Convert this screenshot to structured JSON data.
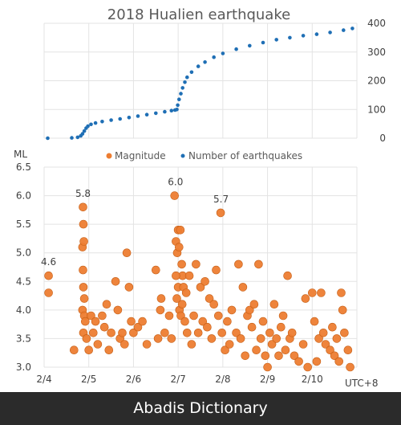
{
  "chart_data": {
    "title": "2018 Hualien earthquake",
    "x_axis": {
      "label": "UTC+8",
      "ticks": [
        "2/4",
        "2/5",
        "2/6",
        "2/7",
        "2/8",
        "2/9",
        "2/10"
      ],
      "range_days": [
        4,
        11
      ]
    },
    "legend": {
      "placement": "top-center",
      "entries": [
        {
          "name": "Magnitude",
          "color": "#ed7d31",
          "marker": "circle"
        },
        {
          "name": "Number of earthquakes",
          "color": "#1f6fb5",
          "marker": "dot"
        }
      ]
    },
    "panels": [
      {
        "type": "scatter",
        "series": "Number of earthquakes",
        "y_axis": {
          "side": "right",
          "ylim": [
            0,
            400
          ],
          "ticks": [
            "0",
            "100",
            "200",
            "300",
            "400"
          ]
        },
        "points": [
          [
            4.08,
            0
          ],
          [
            4.62,
            1
          ],
          [
            4.75,
            3
          ],
          [
            4.82,
            8
          ],
          [
            4.86,
            15
          ],
          [
            4.9,
            25
          ],
          [
            4.94,
            35
          ],
          [
            4.98,
            42
          ],
          [
            5.05,
            48
          ],
          [
            5.15,
            53
          ],
          [
            5.3,
            58
          ],
          [
            5.5,
            63
          ],
          [
            5.7,
            67
          ],
          [
            5.9,
            72
          ],
          [
            6.1,
            77
          ],
          [
            6.3,
            82
          ],
          [
            6.5,
            87
          ],
          [
            6.7,
            92
          ],
          [
            6.85,
            96
          ],
          [
            6.93,
            98
          ],
          [
            6.97,
            100
          ],
          [
            6.99,
            115
          ],
          [
            7.02,
            135
          ],
          [
            7.06,
            155
          ],
          [
            7.1,
            175
          ],
          [
            7.15,
            195
          ],
          [
            7.2,
            212
          ],
          [
            7.3,
            230
          ],
          [
            7.45,
            250
          ],
          [
            7.6,
            265
          ],
          [
            7.8,
            282
          ],
          [
            8.0,
            295
          ],
          [
            8.3,
            310
          ],
          [
            8.6,
            322
          ],
          [
            8.9,
            333
          ],
          [
            9.2,
            343
          ],
          [
            9.5,
            350
          ],
          [
            9.8,
            357
          ],
          [
            10.1,
            362
          ],
          [
            10.4,
            368
          ],
          [
            10.7,
            376
          ],
          [
            10.9,
            382
          ]
        ]
      },
      {
        "type": "scatter",
        "series": "Magnitude",
        "y_axis": {
          "side": "left",
          "label": "ML",
          "ylim": [
            3.0,
            6.5
          ],
          "ticks": [
            "3.0",
            "3.5",
            "4.0",
            "4.5",
            "5.0",
            "5.5",
            "6.0",
            "6.5"
          ]
        },
        "annotations": [
          {
            "text": "4.6",
            "x": 4.1,
            "y": 4.6
          },
          {
            "text": "5.8",
            "x": 4.87,
            "y": 5.8
          },
          {
            "text": "6.0",
            "x": 6.94,
            "y": 6.0
          },
          {
            "text": "5.7",
            "x": 7.96,
            "y": 5.7
          }
        ],
        "points": [
          [
            4.1,
            4.6
          ],
          [
            4.1,
            4.3
          ],
          [
            4.67,
            3.3
          ],
          [
            4.87,
            5.8
          ],
          [
            4.88,
            5.5
          ],
          [
            4.86,
            5.1
          ],
          [
            4.89,
            5.2
          ],
          [
            4.87,
            4.7
          ],
          [
            4.88,
            4.4
          ],
          [
            4.9,
            4.2
          ],
          [
            4.86,
            4.0
          ],
          [
            4.9,
            3.9
          ],
          [
            4.92,
            3.8
          ],
          [
            4.88,
            3.6
          ],
          [
            4.95,
            3.5
          ],
          [
            5.0,
            3.3
          ],
          [
            5.05,
            3.9
          ],
          [
            5.1,
            3.6
          ],
          [
            5.15,
            3.8
          ],
          [
            5.2,
            3.4
          ],
          [
            5.3,
            3.9
          ],
          [
            5.35,
            3.7
          ],
          [
            5.4,
            4.1
          ],
          [
            5.45,
            3.3
          ],
          [
            5.5,
            3.6
          ],
          [
            5.6,
            4.5
          ],
          [
            5.65,
            4.0
          ],
          [
            5.7,
            3.5
          ],
          [
            5.75,
            3.6
          ],
          [
            5.8,
            3.4
          ],
          [
            5.85,
            5.0
          ],
          [
            5.9,
            4.4
          ],
          [
            5.95,
            3.8
          ],
          [
            6.0,
            3.6
          ],
          [
            6.1,
            3.7
          ],
          [
            6.2,
            3.8
          ],
          [
            6.3,
            3.4
          ],
          [
            6.5,
            4.7
          ],
          [
            6.55,
            3.5
          ],
          [
            6.6,
            4.0
          ],
          [
            6.62,
            4.2
          ],
          [
            6.7,
            3.6
          ],
          [
            6.8,
            3.9
          ],
          [
            6.85,
            3.5
          ],
          [
            6.92,
            6.0
          ],
          [
            6.95,
            5.2
          ],
          [
            6.98,
            5.0
          ],
          [
            7.0,
            5.4
          ],
          [
            7.02,
            5.1
          ],
          [
            7.05,
            5.4
          ],
          [
            7.08,
            4.8
          ],
          [
            7.1,
            4.6
          ],
          [
            6.95,
            4.6
          ],
          [
            6.97,
            4.2
          ],
          [
            7.0,
            4.4
          ],
          [
            7.03,
            4.0
          ],
          [
            7.06,
            3.9
          ],
          [
            7.09,
            4.1
          ],
          [
            7.12,
            4.4
          ],
          [
            7.15,
            3.8
          ],
          [
            7.18,
            4.3
          ],
          [
            7.2,
            3.6
          ],
          [
            7.25,
            4.6
          ],
          [
            7.3,
            3.4
          ],
          [
            7.35,
            3.9
          ],
          [
            7.4,
            4.8
          ],
          [
            7.45,
            3.6
          ],
          [
            7.5,
            4.4
          ],
          [
            7.55,
            3.8
          ],
          [
            7.6,
            4.5
          ],
          [
            7.65,
            3.7
          ],
          [
            7.7,
            4.2
          ],
          [
            7.75,
            3.5
          ],
          [
            7.8,
            4.1
          ],
          [
            7.85,
            4.7
          ],
          [
            7.9,
            3.9
          ],
          [
            7.95,
            5.7
          ],
          [
            7.98,
            3.6
          ],
          [
            8.05,
            3.3
          ],
          [
            8.1,
            3.8
          ],
          [
            8.15,
            3.4
          ],
          [
            8.2,
            4.0
          ],
          [
            8.3,
            3.6
          ],
          [
            8.35,
            4.8
          ],
          [
            8.4,
            3.5
          ],
          [
            8.45,
            4.4
          ],
          [
            8.5,
            3.2
          ],
          [
            8.55,
            3.9
          ],
          [
            8.6,
            4.0
          ],
          [
            8.65,
            3.7
          ],
          [
            8.7,
            4.1
          ],
          [
            8.75,
            3.3
          ],
          [
            8.8,
            4.8
          ],
          [
            8.85,
            3.5
          ],
          [
            8.9,
            3.8
          ],
          [
            8.95,
            3.2
          ],
          [
            9.0,
            3.0
          ],
          [
            9.05,
            3.6
          ],
          [
            9.1,
            3.4
          ],
          [
            9.15,
            4.1
          ],
          [
            9.2,
            3.5
          ],
          [
            9.25,
            3.2
          ],
          [
            9.3,
            3.7
          ],
          [
            9.35,
            3.9
          ],
          [
            9.4,
            3.3
          ],
          [
            9.45,
            4.6
          ],
          [
            9.5,
            3.5
          ],
          [
            9.55,
            3.6
          ],
          [
            9.6,
            3.2
          ],
          [
            9.7,
            3.1
          ],
          [
            9.8,
            3.4
          ],
          [
            9.85,
            4.2
          ],
          [
            9.9,
            3.0
          ],
          [
            10.0,
            4.3
          ],
          [
            10.05,
            3.8
          ],
          [
            10.1,
            3.1
          ],
          [
            10.15,
            3.5
          ],
          [
            10.2,
            4.3
          ],
          [
            10.25,
            3.6
          ],
          [
            10.3,
            3.4
          ],
          [
            10.4,
            3.3
          ],
          [
            10.45,
            3.7
          ],
          [
            10.5,
            3.2
          ],
          [
            10.55,
            3.5
          ],
          [
            10.6,
            3.1
          ],
          [
            10.65,
            4.3
          ],
          [
            10.68,
            4.0
          ],
          [
            10.72,
            3.6
          ],
          [
            10.8,
            3.3
          ],
          [
            10.85,
            3.0
          ]
        ]
      }
    ]
  },
  "footer": {
    "text": "Abadis Dictionary"
  }
}
